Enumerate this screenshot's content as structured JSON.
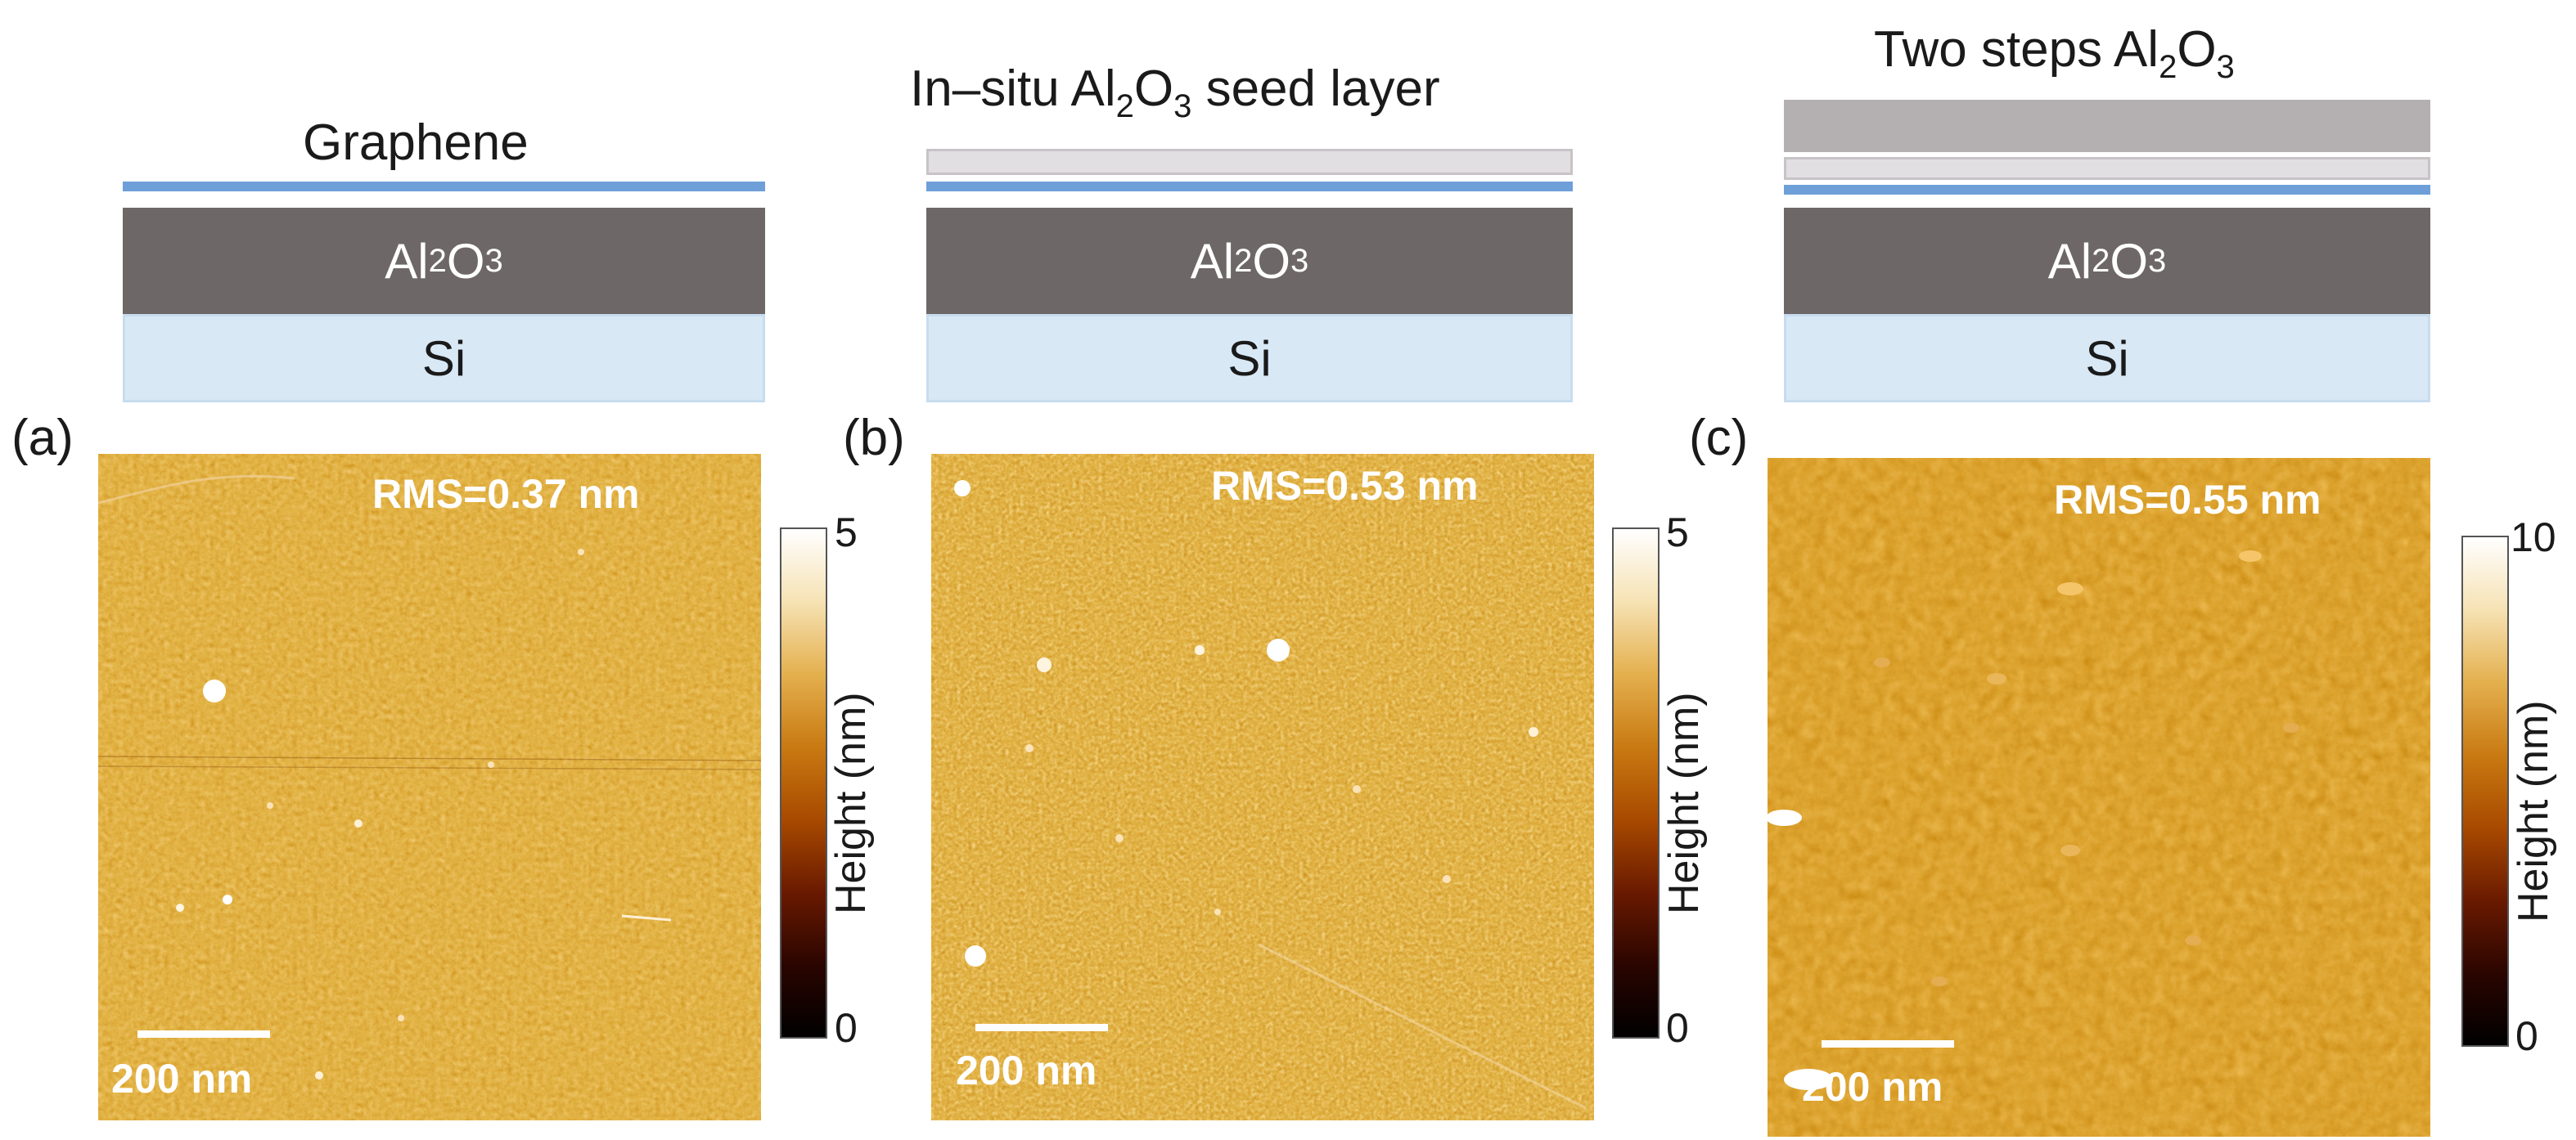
{
  "colors": {
    "graphene": "#6f9fd8",
    "al2o3": "#6d6867",
    "si": "#d8e8f5",
    "seed": "#e2dfe2",
    "thick_al2o3": "#b4afb0",
    "afm_colormap": [
      "#000000",
      "#2b0500",
      "#6a1a00",
      "#a84a00",
      "#c97a12",
      "#e4b04e",
      "#f6e2b4",
      "#ffffff"
    ]
  },
  "layer_labels": {
    "al2o3_main": "Al",
    "al2o3_sub2": "2",
    "al2o3_o": "O",
    "al2o3_sub3": "3",
    "si": "Si"
  },
  "panels": [
    {
      "label": "(a)",
      "title": "Graphene",
      "rms": "RMS=0.37 nm",
      "scale_bar": "200 nm",
      "colorbar": {
        "max": "5",
        "min": "0",
        "label": "Height (nm)"
      }
    },
    {
      "label": "(b)",
      "title_prefix": "In–situ Al",
      "title_sub2": "2",
      "title_o": "O",
      "title_sub3": "3",
      "title_suffix": " seed layer",
      "rms": "RMS=0.53 nm",
      "scale_bar": "200 nm",
      "colorbar": {
        "max": "5",
        "min": "0",
        "label": "Height (nm)"
      }
    },
    {
      "label": "(c)",
      "title_prefix": "Two steps Al",
      "title_sub2": "2",
      "title_o": "O",
      "title_sub3": "3",
      "rms": "RMS=0.55 nm",
      "scale_bar": "200 nm",
      "colorbar": {
        "max": "10",
        "min": "0",
        "label": "Height (nm)"
      }
    }
  ]
}
